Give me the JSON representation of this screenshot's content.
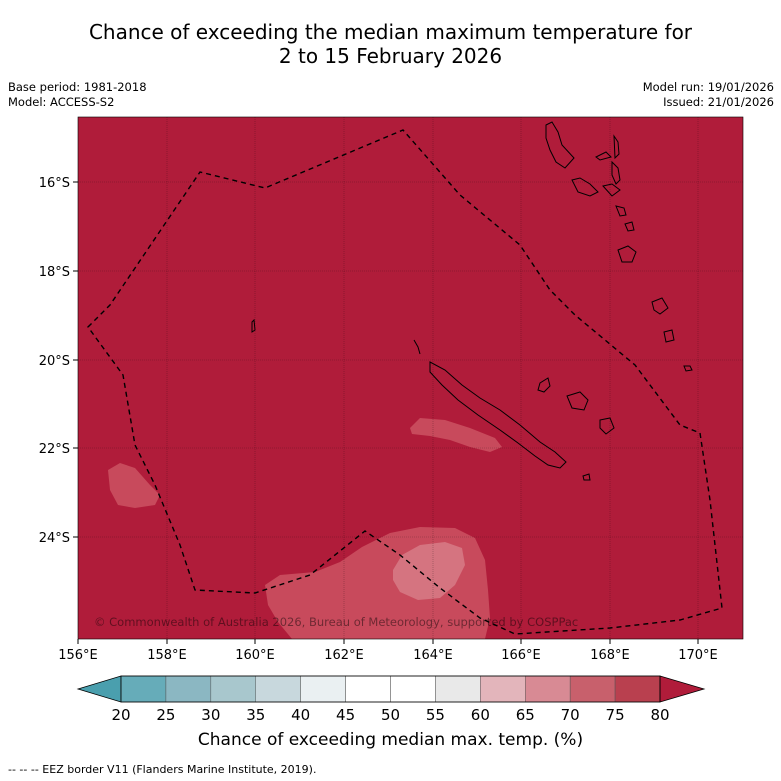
{
  "title": {
    "line1": "Chance of exceeding the median maximum temperature for",
    "line2": "2 to 15 February 2026"
  },
  "meta": {
    "base_period": "Base period: 1981-2018",
    "model": "Model: ACCESS-S2",
    "model_run": "Model run: 19/01/2026",
    "issued": "Issued: 21/01/2026"
  },
  "map": {
    "lat_ticks": [
      "16°S",
      "18°S",
      "20°S",
      "22°S",
      "24°S"
    ],
    "lon_ticks": [
      "156°E",
      "158°E",
      "160°E",
      "162°E",
      "164°E",
      "166°E",
      "168°E",
      "170°E"
    ],
    "copyright": "© Commonwealth of Australia 2026, Bureau of Meteorology, supported by COSPPac",
    "background_color": "#b01c3a",
    "region_color": "#c84a5c",
    "region_inner_color": "#d57480"
  },
  "colorbar": {
    "ticks": [
      "20",
      "25",
      "30",
      "35",
      "40",
      "45",
      "50",
      "55",
      "60",
      "65",
      "70",
      "75",
      "80"
    ],
    "colors": [
      "#66acb9",
      "#8bb7c2",
      "#a8c7cd",
      "#c8d8dd",
      "#eaf0f2",
      "#ffffff",
      "#ffffff",
      "#e9e9e9",
      "#e3b5bb",
      "#d88a94",
      "#c8606c",
      "#b9404f"
    ],
    "under_color": "#4a9fae",
    "over_color": "#b01c3a",
    "label": "Chance of exceeding median max. temp. (%)"
  },
  "footer": "--  --  -- EEZ border V11 (Flanders Marine Institute, 2019)."
}
